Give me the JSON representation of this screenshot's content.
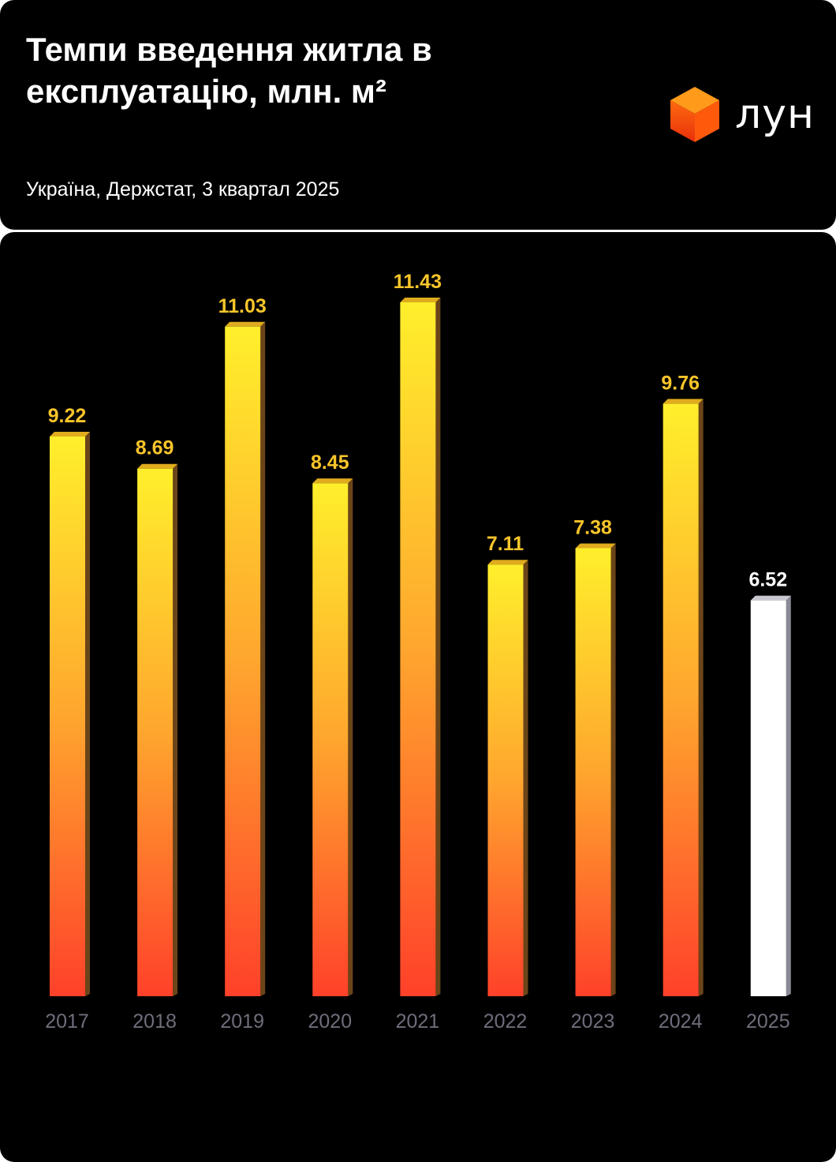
{
  "header": {
    "title": "Темпи введення житла в експлуатацію, млн. м²",
    "subtitle": "Україна, Держстат, 3 квартал 2025",
    "logo_text": "лун"
  },
  "colors": {
    "bar_top": "#ffec2a",
    "bar_bottom": "#ff4a2a",
    "value_label": "#f9c52a",
    "highlight": "#ffffff",
    "year_label": "#6e6e7c"
  },
  "chart_data": {
    "type": "bar",
    "title": "Темпи введення житла в експлуатацію, млн. м²",
    "categories": [
      "2017",
      "2018",
      "2019",
      "2020",
      "2021",
      "2022",
      "2023",
      "2024",
      "2025"
    ],
    "values": [
      9.22,
      8.69,
      11.03,
      8.45,
      11.43,
      7.11,
      7.38,
      9.76,
      6.52
    ],
    "labels": [
      "9.22",
      "8.69",
      "11.03",
      "8.45",
      "11.43",
      "7.11",
      "7.38",
      "9.76",
      "6.52"
    ],
    "highlight_index": 8,
    "xlabel": "",
    "ylabel": "млн. м²",
    "ylim": [
      0,
      11.43
    ],
    "grid": false
  }
}
